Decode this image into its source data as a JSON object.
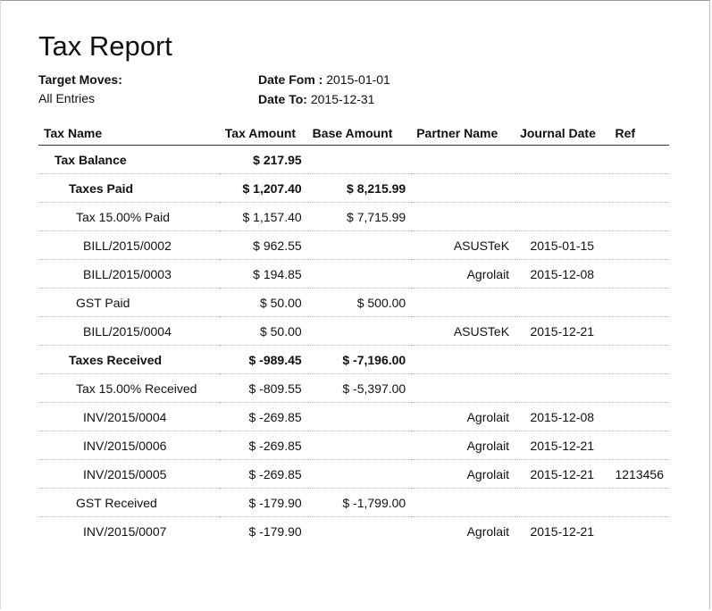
{
  "report": {
    "title": "Tax Report",
    "target_moves_label": "Target Moves:",
    "target_moves_value": "All Entries",
    "date_from_label": "Date Fom :",
    "date_from_value": "2015-01-01",
    "date_to_label": "Date To:",
    "date_to_value": "2015-12-31"
  },
  "table": {
    "headers": {
      "tax_name": "Tax Name",
      "tax_amount": "Tax Amount",
      "base_amount": "Base Amount",
      "partner_name": "Partner Name",
      "journal_date": "Journal Date",
      "ref": "Ref"
    },
    "rows": [
      {
        "name": "Tax Balance",
        "tax": "$ 217.95",
        "base": "",
        "partner": "",
        "date": "",
        "ref": ""
      },
      {
        "name": "Taxes Paid",
        "tax": "$ 1,207.40",
        "base": "$ 8,215.99",
        "partner": "",
        "date": "",
        "ref": ""
      },
      {
        "name": "Tax 15.00% Paid",
        "tax": "$ 1,157.40",
        "base": "$ 7,715.99",
        "partner": "",
        "date": "",
        "ref": ""
      },
      {
        "name": "BILL/2015/0002",
        "tax": "$ 962.55",
        "base": "",
        "partner": "ASUSTeK",
        "date": "2015-01-15",
        "ref": ""
      },
      {
        "name": "BILL/2015/0003",
        "tax": "$ 194.85",
        "base": "",
        "partner": "Agrolait",
        "date": "2015-12-08",
        "ref": ""
      },
      {
        "name": "GST Paid",
        "tax": "$ 50.00",
        "base": "$ 500.00",
        "partner": "",
        "date": "",
        "ref": ""
      },
      {
        "name": "BILL/2015/0004",
        "tax": "$ 50.00",
        "base": "",
        "partner": "ASUSTeK",
        "date": "2015-12-21",
        "ref": ""
      },
      {
        "name": "Taxes Received",
        "tax": "$ -989.45",
        "base": "$ -7,196.00",
        "partner": "",
        "date": "",
        "ref": ""
      },
      {
        "name": "Tax 15.00% Received",
        "tax": "$ -809.55",
        "base": "$ -5,397.00",
        "partner": "",
        "date": "",
        "ref": ""
      },
      {
        "name": "INV/2015/0004",
        "tax": "$ -269.85",
        "base": "",
        "partner": "Agrolait",
        "date": "2015-12-08",
        "ref": ""
      },
      {
        "name": "INV/2015/0006",
        "tax": "$ -269.85",
        "base": "",
        "partner": "Agrolait",
        "date": "2015-12-21",
        "ref": ""
      },
      {
        "name": "INV/2015/0005",
        "tax": "$ -269.85",
        "base": "",
        "partner": "Agrolait",
        "date": "2015-12-21",
        "ref": "1213456"
      },
      {
        "name": "GST Received",
        "tax": "$ -179.90",
        "base": "$ -1,799.00",
        "partner": "",
        "date": "",
        "ref": ""
      },
      {
        "name": "INV/2015/0007",
        "tax": "$ -179.90",
        "base": "",
        "partner": "Agrolait",
        "date": "2015-12-21",
        "ref": ""
      }
    ]
  }
}
